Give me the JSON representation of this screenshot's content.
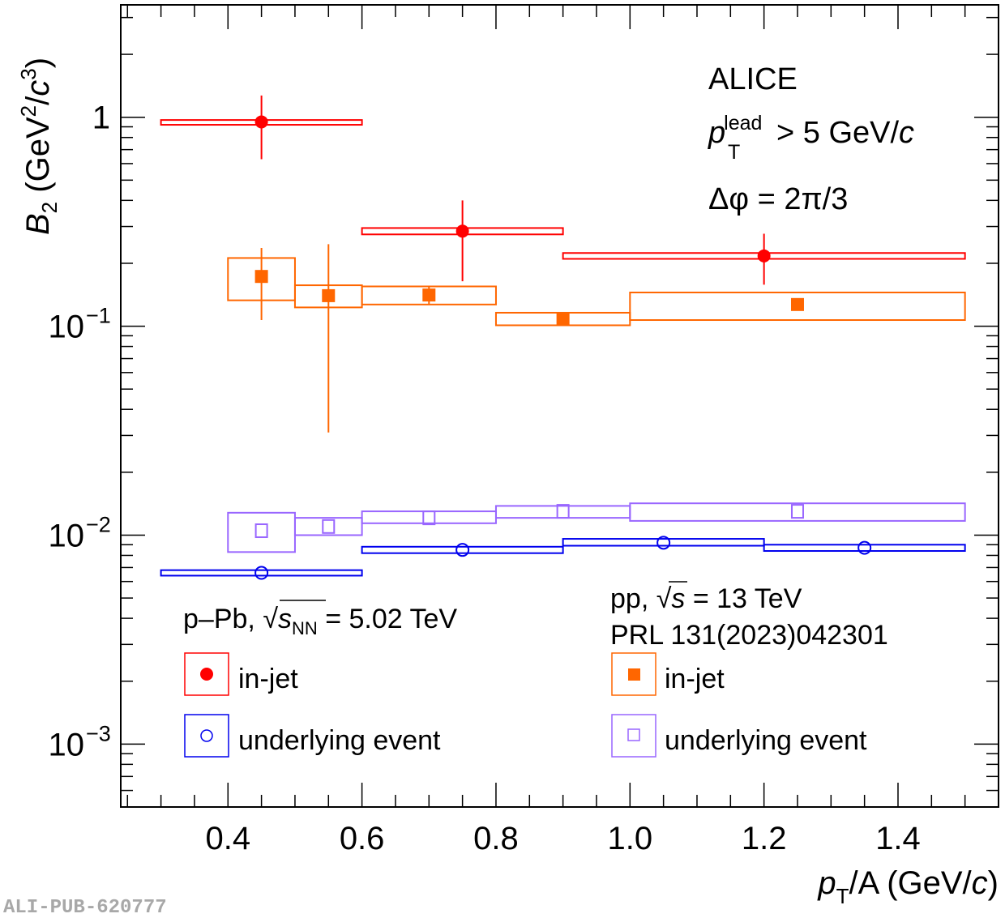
{
  "chart_data": {
    "type": "scatter",
    "title": "",
    "xlabel": "pT/A (GeV/c)",
    "xlabel_parts": {
      "p": "p",
      "sub": "T",
      "rest": "/A (GeV/",
      "c": "c",
      "close": ")"
    },
    "ylabel": "B2 (GeV^2/c^3)",
    "ylabel_parts": {
      "b": "B",
      "sub": "2",
      "open": " (GeV",
      "sup1": "2",
      "slash": "/",
      "c": "c",
      "sup2": "3",
      "close": ")"
    },
    "xlim": [
      0.24,
      1.55
    ],
    "ylim": [
      0.0005,
      3.45
    ],
    "yscale": "log",
    "grid": false,
    "x_ticks": [
      {
        "value": 0.4,
        "label": "0.4"
      },
      {
        "value": 0.6,
        "label": "0.6"
      },
      {
        "value": 0.8,
        "label": "0.8"
      },
      {
        "value": 1.0,
        "label": "1.0"
      },
      {
        "value": 1.2,
        "label": "1.2"
      },
      {
        "value": 1.4,
        "label": "1.4"
      }
    ],
    "y_ticks": [
      {
        "value": 1,
        "base": "1",
        "exp": ""
      },
      {
        "value": 0.1,
        "base": "10",
        "exp": "−1"
      },
      {
        "value": 0.01,
        "base": "10",
        "exp": "−2"
      },
      {
        "value": 0.001,
        "base": "10",
        "exp": "−3"
      }
    ],
    "annotations": {
      "experiment": "ALICE",
      "cut_p": "p",
      "cut_sup": "lead",
      "cut_sub": "T",
      "cut_rest": " > 5 GeV/",
      "cut_c": "c",
      "dphi": "Δφ = 2π/3"
    },
    "series": [
      {
        "name": "p–Pb in-jet",
        "group": "pPb",
        "label": "in-jet",
        "color": "#ff0000",
        "marker": "filled-circle",
        "points": [
          {
            "x": 0.45,
            "xlo": 0.3,
            "xhi": 0.6,
            "y": 0.95,
            "stat_lo": 0.63,
            "stat_hi": 1.27,
            "sys_lo": 0.92,
            "sys_hi": 0.97
          },
          {
            "x": 0.75,
            "xlo": 0.6,
            "xhi": 0.9,
            "y": 0.285,
            "stat_lo": 0.164,
            "stat_hi": 0.4,
            "sys_lo": 0.275,
            "sys_hi": 0.295
          },
          {
            "x": 1.2,
            "xlo": 0.9,
            "xhi": 1.5,
            "y": 0.217,
            "stat_lo": 0.158,
            "stat_hi": 0.277,
            "sys_lo": 0.21,
            "sys_hi": 0.224
          }
        ]
      },
      {
        "name": "p–Pb underlying event",
        "group": "pPb",
        "label": "underlying event",
        "color": "#0000ee",
        "marker": "open-circle",
        "points": [
          {
            "x": 0.45,
            "xlo": 0.3,
            "xhi": 0.6,
            "y": 0.0066,
            "stat_lo": 0.0066,
            "stat_hi": 0.0066,
            "sys_lo": 0.0064,
            "sys_hi": 0.0068
          },
          {
            "x": 0.75,
            "xlo": 0.6,
            "xhi": 0.9,
            "y": 0.0085,
            "stat_lo": 0.0085,
            "stat_hi": 0.0085,
            "sys_lo": 0.0082,
            "sys_hi": 0.0088
          },
          {
            "x": 1.05,
            "xlo": 0.9,
            "xhi": 1.2,
            "y": 0.0092,
            "stat_lo": 0.0092,
            "stat_hi": 0.0092,
            "sys_lo": 0.0089,
            "sys_hi": 0.0096
          },
          {
            "x": 1.35,
            "xlo": 1.2,
            "xhi": 1.5,
            "y": 0.0087,
            "stat_lo": 0.0087,
            "stat_hi": 0.0087,
            "sys_lo": 0.0084,
            "sys_hi": 0.009
          }
        ]
      },
      {
        "name": "pp in-jet",
        "group": "pp",
        "label": "in-jet",
        "color": "#ff6600",
        "marker": "filled-square",
        "points": [
          {
            "x": 0.45,
            "xlo": 0.4,
            "xhi": 0.5,
            "y": 0.173,
            "stat_lo": 0.107,
            "stat_hi": 0.237,
            "sys_lo": 0.133,
            "sys_hi": 0.212
          },
          {
            "x": 0.55,
            "xlo": 0.5,
            "xhi": 0.6,
            "y": 0.14,
            "stat_lo": 0.031,
            "stat_hi": 0.247,
            "sys_lo": 0.123,
            "sys_hi": 0.157
          },
          {
            "x": 0.7,
            "xlo": 0.6,
            "xhi": 0.8,
            "y": 0.141,
            "stat_lo": 0.127,
            "stat_hi": 0.155,
            "sys_lo": 0.127,
            "sys_hi": 0.155
          },
          {
            "x": 0.9,
            "xlo": 0.8,
            "xhi": 1.0,
            "y": 0.108,
            "stat_lo": 0.101,
            "stat_hi": 0.116,
            "sys_lo": 0.101,
            "sys_hi": 0.116
          },
          {
            "x": 1.25,
            "xlo": 1.0,
            "xhi": 1.5,
            "y": 0.127,
            "stat_lo": 0.127,
            "stat_hi": 0.127,
            "sys_lo": 0.107,
            "sys_hi": 0.145
          }
        ]
      },
      {
        "name": "pp underlying event",
        "group": "pp",
        "label": "underlying event",
        "color": "#9966ff",
        "marker": "open-square",
        "points": [
          {
            "x": 0.45,
            "xlo": 0.4,
            "xhi": 0.5,
            "y": 0.0105,
            "stat_lo": 0.0105,
            "stat_hi": 0.0105,
            "sys_lo": 0.0083,
            "sys_hi": 0.0128
          },
          {
            "x": 0.55,
            "xlo": 0.5,
            "xhi": 0.6,
            "y": 0.011,
            "stat_lo": 0.011,
            "stat_hi": 0.011,
            "sys_lo": 0.01,
            "sys_hi": 0.0121
          },
          {
            "x": 0.7,
            "xlo": 0.6,
            "xhi": 0.8,
            "y": 0.0121,
            "stat_lo": 0.0121,
            "stat_hi": 0.0121,
            "sys_lo": 0.0114,
            "sys_hi": 0.013
          },
          {
            "x": 0.9,
            "xlo": 0.8,
            "xhi": 1.0,
            "y": 0.013,
            "stat_lo": 0.013,
            "stat_hi": 0.013,
            "sys_lo": 0.0121,
            "sys_hi": 0.0138
          },
          {
            "x": 1.25,
            "xlo": 1.0,
            "xhi": 1.5,
            "y": 0.013,
            "stat_lo": 0.013,
            "stat_hi": 0.013,
            "sys_lo": 0.0117,
            "sys_hi": 0.0142
          }
        ]
      }
    ],
    "legends": [
      {
        "position": "bottom-left",
        "header_parts": {
          "pre": "p–Pb, ",
          "sqrt": "√",
          "s": "s",
          "sub": "NN",
          "post": " = 5.02 TeV"
        },
        "entries": [
          {
            "series": 0,
            "label": "in-jet"
          },
          {
            "series": 1,
            "label": "underlying event"
          }
        ]
      },
      {
        "position": "bottom-right",
        "header_parts": {
          "pre": "pp, ",
          "sqrt": "√",
          "s": "s",
          "post": " = 13 TeV"
        },
        "reference": "PRL 131(2023)042301",
        "entries": [
          {
            "series": 2,
            "label": "in-jet"
          },
          {
            "series": 3,
            "label": "underlying event"
          }
        ]
      }
    ]
  },
  "watermark": "ALI-PUB-620777"
}
